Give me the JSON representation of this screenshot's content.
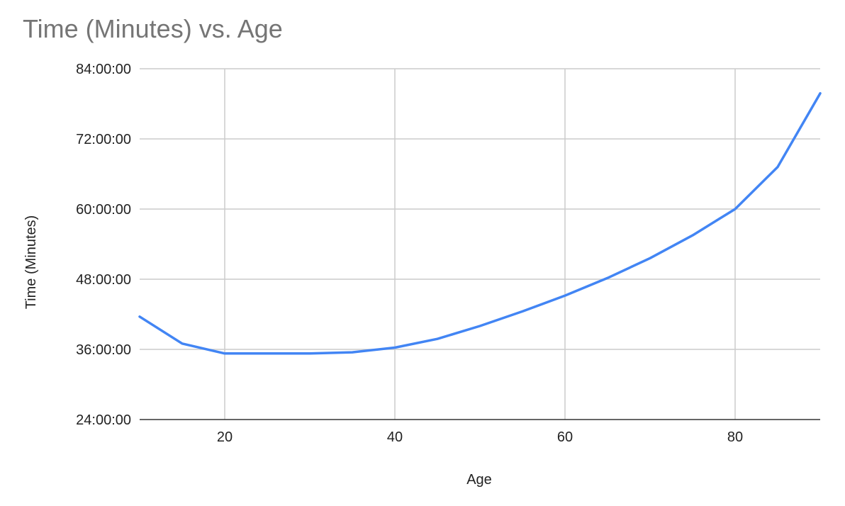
{
  "chart_data": {
    "type": "line",
    "title": "Time (Minutes) vs. Age",
    "xlabel": "Age",
    "ylabel": "Time (Minutes)",
    "xlim": [
      10,
      90
    ],
    "ylim": [
      24,
      84
    ],
    "x_ticks": [
      20,
      40,
      60,
      80
    ],
    "y_ticks": [
      24,
      36,
      48,
      60,
      72,
      84
    ],
    "y_tick_labels": [
      "24:00:00",
      "36:00:00",
      "48:00:00",
      "60:00:00",
      "72:00:00",
      "84:00:00"
    ],
    "grid": true,
    "legend": "none",
    "series": [
      {
        "color": "#4285f4",
        "x": [
          10,
          15,
          20,
          25,
          30,
          35,
          40,
          45,
          50,
          55,
          60,
          65,
          70,
          75,
          80,
          85,
          90
        ],
        "y": [
          41.6,
          37.0,
          35.3,
          35.3,
          35.3,
          35.5,
          36.3,
          37.8,
          40.0,
          42.5,
          45.2,
          48.2,
          51.6,
          55.5,
          60.0,
          67.2,
          79.8
        ]
      }
    ]
  }
}
